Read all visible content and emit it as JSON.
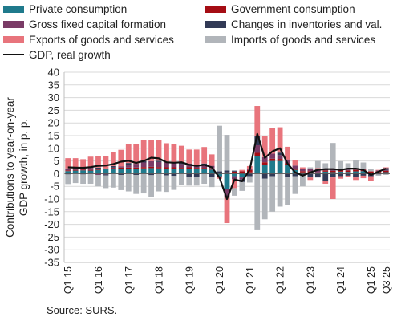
{
  "chart_data": {
    "type": "bar",
    "stacked": true,
    "ylabel": "Contributions to year-on-year GDP growth, in p. p.",
    "ylim": [
      -35,
      40
    ],
    "yticks": [
      40,
      35,
      30,
      25,
      20,
      15,
      10,
      5,
      0,
      -5,
      -10,
      -15,
      -20,
      -25,
      -30,
      -35
    ],
    "grid": true,
    "legend_position": "top",
    "x": [
      "Q1 15",
      "Q2 15",
      "Q3 15",
      "Q4 15",
      "Q1 16",
      "Q2 16",
      "Q3 16",
      "Q4 16",
      "Q1 17",
      "Q2 17",
      "Q3 17",
      "Q4 17",
      "Q1 18",
      "Q2 18",
      "Q3 18",
      "Q4 18",
      "Q1 19",
      "Q2 19",
      "Q3 19",
      "Q4 19",
      "Q1 20",
      "Q2 20",
      "Q3 20",
      "Q4 20",
      "Q1 21",
      "Q2 21",
      "Q3 21",
      "Q4 21",
      "Q1 22",
      "Q2 22",
      "Q3 22",
      "Q4 22",
      "Q1 23",
      "Q2 23",
      "Q3 23",
      "Q4 23",
      "Q1 24",
      "Q2 24",
      "Q3 24",
      "Q4 24",
      "Q1 25",
      "Q2 25",
      "Q3 25"
    ],
    "x_tick_labels": [
      "Q1 15",
      "Q1 16",
      "Q1 17",
      "Q1 18",
      "Q1 19",
      "Q1 20",
      "Q1 21",
      "Q1 22",
      "Q1 23",
      "Q1 24",
      "Q1 25",
      "Q3 25"
    ],
    "series": [
      {
        "name": "Private consumption",
        "color": "#1f7a8c",
        "values": [
          1.0,
          1.2,
          1.3,
          1.2,
          1.5,
          1.7,
          1.8,
          2.0,
          2.0,
          2.0,
          2.1,
          2.2,
          2.1,
          2.0,
          2.0,
          1.8,
          2.0,
          1.8,
          1.8,
          1.6,
          -1.0,
          -6.0,
          -1.0,
          -1.5,
          0.5,
          7.0,
          3.5,
          5.0,
          5.0,
          3.5,
          1.5,
          0.5,
          0.5,
          0.0,
          0.8,
          0.6,
          0.8,
          0.7,
          0.9,
          1.0,
          0.4,
          0.5,
          0.6
        ]
      },
      {
        "name": "Government consumption",
        "color": "#a50d14",
        "values": [
          0.3,
          0.3,
          0.3,
          0.3,
          0.4,
          0.4,
          0.4,
          0.4,
          0.4,
          0.4,
          0.5,
          0.5,
          0.5,
          0.5,
          0.5,
          0.5,
          0.5,
          0.5,
          0.5,
          0.5,
          0.4,
          0.5,
          0.8,
          1.0,
          1.0,
          1.2,
          1.0,
          0.9,
          0.8,
          0.6,
          0.5,
          0.5,
          0.5,
          0.5,
          0.5,
          0.5,
          0.6,
          0.6,
          0.6,
          0.6,
          0.5,
          0.5,
          0.5
        ]
      },
      {
        "name": "Gross fixed capital formation",
        "color": "#7a3b66",
        "values": [
          0.8,
          0.5,
          0.4,
          0.8,
          -0.5,
          -0.3,
          0.2,
          0.5,
          1.0,
          1.5,
          1.8,
          2.2,
          2.0,
          2.0,
          1.8,
          1.5,
          1.5,
          1.2,
          1.0,
          1.0,
          -0.3,
          -3.0,
          -1.2,
          -0.8,
          0.5,
          3.0,
          2.0,
          2.0,
          1.5,
          1.5,
          1.2,
          1.0,
          1.0,
          1.2,
          0.8,
          1.0,
          0.5,
          0.3,
          0.4,
          0.3,
          -0.5,
          0.3,
          0.4
        ]
      },
      {
        "name": "Changes in inventories and val.",
        "color": "#323a56",
        "values": [
          -0.3,
          0.3,
          -0.3,
          0.4,
          0.5,
          -0.4,
          0.6,
          -0.5,
          0.8,
          -0.5,
          0.5,
          -0.6,
          0.5,
          -0.7,
          -0.9,
          0.7,
          -1.2,
          -1.2,
          0.7,
          -1.3,
          0.5,
          0.8,
          0.4,
          -1.0,
          -1.0,
          3.5,
          -2.0,
          -1.0,
          1.0,
          -1.5,
          -1.0,
          -0.5,
          -1.5,
          -1.5,
          -3.0,
          -1.5,
          -1.0,
          -0.8,
          -1.5,
          -0.8,
          -0.5,
          -0.3,
          0.7
        ]
      },
      {
        "name": "Exports of goods and services",
        "color": "#e8747c",
        "values": [
          4.0,
          3.8,
          3.7,
          4.0,
          4.5,
          4.7,
          5.5,
          6.5,
          7.5,
          7.8,
          8.2,
          8.5,
          8.0,
          7.5,
          7.3,
          6.5,
          5.5,
          6.0,
          6.5,
          4.5,
          -0.7,
          -10.5,
          -3.5,
          0.5,
          1.0,
          12.0,
          8.5,
          10.0,
          10.0,
          5.0,
          2.0,
          0.5,
          -1.0,
          0.5,
          -1.0,
          -8.5,
          -1.0,
          -0.5,
          -1.0,
          -1.0,
          -2.0,
          0.2,
          0.3
        ]
      },
      {
        "name": "Imports of goods and services",
        "color": "#b1b5ba",
        "values": [
          -3.8,
          -3.7,
          -3.7,
          -4.0,
          -4.5,
          -5.0,
          -5.5,
          -6.0,
          -7.0,
          -7.5,
          -7.8,
          -8.5,
          -7.0,
          -6.5,
          -5.5,
          -4.5,
          -3.5,
          -3.5,
          -4.0,
          -4.0,
          18.0,
          14.0,
          -3.0,
          -3.5,
          -2.5,
          -22.0,
          -16.0,
          -14.0,
          -13.0,
          -11.0,
          -7.0,
          -4.5,
          0.5,
          2.8,
          2.0,
          10.0,
          3.0,
          2.5,
          3.5,
          2.5,
          1.0,
          -0.5,
          -0.5
        ]
      }
    ],
    "line": {
      "name": "GDP, real growth",
      "color": "#111111",
      "values": [
        2.5,
        2.4,
        2.3,
        2.6,
        3.1,
        3.2,
        3.8,
        4.7,
        5.1,
        4.2,
        5.0,
        6.3,
        6.0,
        4.5,
        4.3,
        4.5,
        3.5,
        3.1,
        3.5,
        2.5,
        -1.5,
        -10.0,
        -2.3,
        -3.0,
        1.5,
        15.7,
        6.2,
        8.8,
        10.0,
        4.0,
        0.5,
        -0.8,
        0.5,
        1.5,
        1.8,
        1.8,
        1.5,
        2.0,
        2.0,
        1.5,
        -0.5,
        0.8,
        2.0
      ]
    }
  },
  "source": "Source: SURS."
}
